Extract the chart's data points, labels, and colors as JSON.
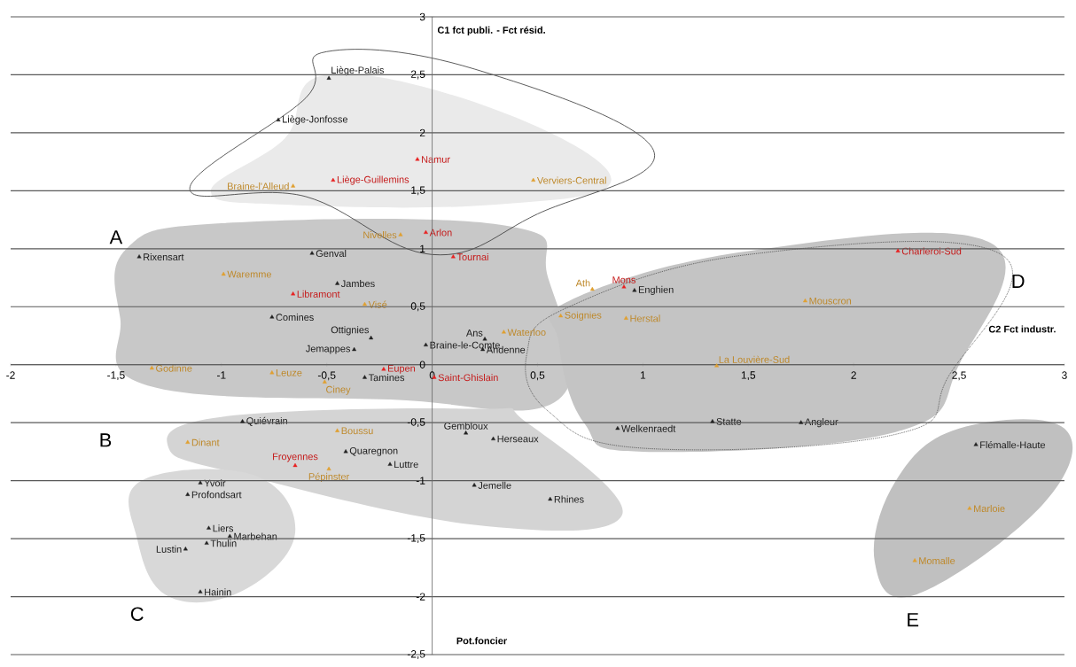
{
  "chart_data": {
    "type": "scatter",
    "xlabel": "C2   Fct industr.",
    "ylabel": "C1   fct publi. - Fct résid.",
    "annotations": [
      "A",
      "B",
      "C",
      "D",
      "E",
      "Pot.foncier"
    ],
    "xlim": [
      -2,
      3
    ],
    "ylim": [
      -2.5,
      3
    ],
    "xticks": [
      {
        "value": -2,
        "label": "-2"
      },
      {
        "value": -1.5,
        "label": "-1,5"
      },
      {
        "value": -1,
        "label": "-1"
      },
      {
        "value": -0.5,
        "label": "-0,5"
      },
      {
        "value": 0,
        "label": "0"
      },
      {
        "value": 0.5,
        "label": "0,5"
      },
      {
        "value": 1,
        "label": "1"
      },
      {
        "value": 1.5,
        "label": "1,5"
      },
      {
        "value": 2,
        "label": "2"
      },
      {
        "value": 2.5,
        "label": "2,5"
      },
      {
        "value": 3,
        "label": "3"
      }
    ],
    "yticks": [
      {
        "value": -2.5,
        "label": "-2,5"
      },
      {
        "value": -2,
        "label": "-2"
      },
      {
        "value": -1.5,
        "label": "-1,5"
      },
      {
        "value": -1,
        "label": "-1"
      },
      {
        "value": -0.5,
        "label": "-0,5"
      },
      {
        "value": 0,
        "label": "0"
      },
      {
        "value": 0.5,
        "label": "0,5"
      },
      {
        "value": 1,
        "label": "1"
      },
      {
        "value": 1.5,
        "label": "1,5"
      },
      {
        "value": 2,
        "label": "2"
      },
      {
        "value": 2.5,
        "label": "2,5"
      },
      {
        "value": 3,
        "label": "3"
      }
    ],
    "grid": "y",
    "marker": "triangle",
    "series": [
      {
        "color": "#222222",
        "x": [
          -0.49,
          -0.73,
          -1.39,
          -0.57,
          -0.45,
          0.96,
          -0.76,
          -0.29,
          -0.03,
          -0.37,
          0.25,
          0.24,
          -0.32,
          -0.9,
          -0.41,
          -0.2,
          0.16,
          0.29,
          0.2,
          0.56,
          0.88,
          1.33,
          1.75,
          2.58,
          -1.1,
          -1.16,
          -1.06,
          -0.96,
          -1.07,
          -1.17,
          -1.1
        ],
        "values": [
          2.47,
          2.11,
          0.93,
          0.96,
          0.7,
          0.64,
          0.41,
          0.23,
          0.17,
          0.13,
          0.22,
          0.13,
          -0.11,
          -0.49,
          -0.75,
          -0.86,
          -0.59,
          -0.64,
          -1.04,
          -1.16,
          -0.55,
          -0.49,
          -0.5,
          -0.69,
          -1.02,
          -1.12,
          -1.41,
          -1.48,
          -1.54,
          -1.59,
          -1.96
        ],
        "value_labels": [
          "Liège-Palais",
          "Liège-Jonfosse",
          "Rixensart",
          "Genval",
          "Jambes",
          "Enghien",
          "Comines",
          "Ottignies",
          "Braine-le-Comte",
          "Jemappes",
          "Ans",
          "Andenne",
          "Tamines",
          "Quiévrain",
          "Quaregnon",
          "Luttre",
          "Gembloux",
          "Herseaux",
          "Jemelle",
          "Rhines",
          "Welkenraedt",
          "Statte",
          "Angleur",
          "Flémalle-Haute",
          "Yvoir",
          "Profondsart",
          "Liers",
          "Marbehan",
          "Thulin",
          "Lustin",
          "Hainin"
        ]
      },
      {
        "color": "#e0a030",
        "x": [
          -0.66,
          0.48,
          -0.15,
          -0.99,
          -0.32,
          0.76,
          0.61,
          0.92,
          0.34,
          1.35,
          -1.33,
          -0.76,
          -0.51,
          -0.45,
          -1.16,
          -0.49,
          2.55,
          2.29,
          1.77
        ],
        "values": [
          1.54,
          1.59,
          1.12,
          0.78,
          0.52,
          0.65,
          0.42,
          0.4,
          0.28,
          -0.01,
          -0.03,
          -0.07,
          -0.15,
          -0.57,
          -0.67,
          -0.9,
          -1.24,
          -1.69,
          0.55
        ],
        "value_labels": [
          "Braine-l'Alleud",
          "Verviers-Central",
          "Nivelles",
          "Waremme",
          "Visé",
          "Ath",
          "Soignies",
          "Herstal",
          "Waterloo",
          "La Louvière-Sud",
          "Godinne",
          "Leuze",
          "Ciney",
          "Boussu",
          "Dinant",
          "Pépinster",
          "Marloie",
          "Momalle",
          "Mouscron"
        ]
      },
      {
        "color": "#e82020",
        "x": [
          -0.07,
          -0.47,
          -0.03,
          0.1,
          -0.66,
          0.91,
          2.21,
          -0.23,
          0.01,
          -0.65
        ],
        "values": [
          1.77,
          1.59,
          1.14,
          0.93,
          0.61,
          0.67,
          0.98,
          -0.04,
          -0.11,
          -0.87
        ],
        "value_labels": [
          "Namur",
          "Liège-Guillemins",
          "Arlon",
          "Tournai",
          "Libramont",
          "Mons",
          "Charleroi-Sud",
          "Eupen",
          "Saint-Ghislain",
          "Froyennes"
        ]
      }
    ]
  }
}
